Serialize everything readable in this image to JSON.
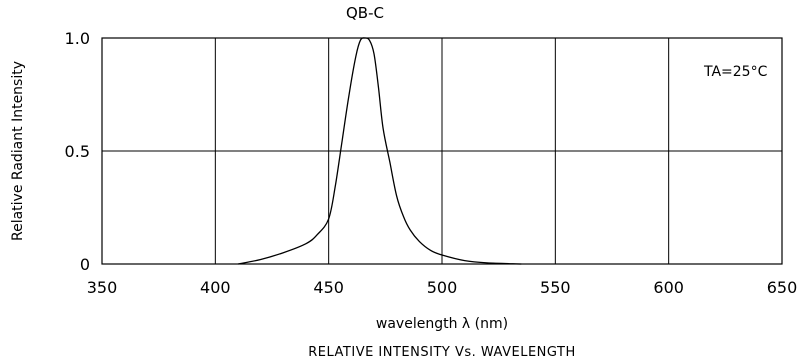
{
  "chart_data": {
    "type": "line",
    "title": "QB-C",
    "xlabel": "wavelength λ (nm)",
    "ylabel": "Relative Radiant Intensity",
    "caption": "RELATIVE INTENSITY Vs. WAVELENGTH",
    "annotation": "TA=25°C",
    "xlim": [
      350,
      650
    ],
    "ylim": [
      0,
      1.0
    ],
    "x_ticks": [
      350,
      400,
      450,
      500,
      550,
      600,
      650
    ],
    "x_tick_labels": [
      "350",
      "400",
      "450",
      "500",
      "550",
      "600",
      "650"
    ],
    "y_ticks": [
      0,
      0.5,
      1.0
    ],
    "y_tick_labels": [
      "0",
      "0.5",
      "1.0"
    ],
    "grid": true,
    "series": [
      {
        "color": "#000000",
        "x": [
          410,
          420,
          430,
          440,
          445,
          450,
          453,
          456,
          459,
          462,
          464,
          466,
          468,
          470,
          472,
          474,
          477,
          480,
          483,
          486,
          490,
          495,
          500,
          510,
          520,
          535
        ],
        "y": [
          0.0,
          0.02,
          0.05,
          0.09,
          0.13,
          0.2,
          0.35,
          0.55,
          0.75,
          0.92,
          0.99,
          1.0,
          0.99,
          0.93,
          0.78,
          0.6,
          0.45,
          0.3,
          0.21,
          0.15,
          0.1,
          0.06,
          0.04,
          0.015,
          0.005,
          0.0
        ]
      }
    ]
  }
}
